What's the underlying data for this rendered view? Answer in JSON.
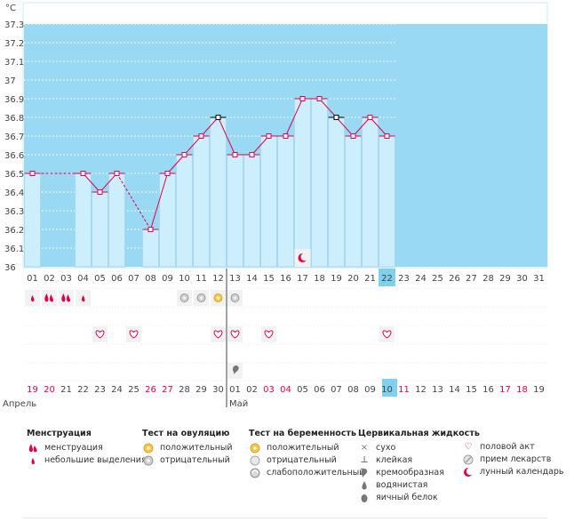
{
  "chart_data": {
    "type": "line",
    "unit": "°C",
    "ylim": [
      36.0,
      37.3
    ],
    "yticks": [
      "36",
      "36.1",
      "36.2",
      "36.3",
      "36.4",
      "36.5",
      "36.6",
      "36.7",
      "36.8",
      "36.9",
      "37",
      "37.1",
      "37.2",
      "37.3"
    ],
    "days": [
      "01",
      "02",
      "03",
      "04",
      "05",
      "06",
      "07",
      "08",
      "09",
      "10",
      "11",
      "12",
      "13",
      "14",
      "15",
      "16",
      "17",
      "18",
      "19",
      "20",
      "21",
      "22",
      "23",
      "24",
      "25",
      "26",
      "27",
      "28",
      "29",
      "30",
      "31"
    ],
    "temperatures": [
      36.5,
      null,
      null,
      36.5,
      36.4,
      36.5,
      null,
      36.2,
      36.5,
      36.6,
      36.7,
      36.8,
      36.6,
      36.6,
      36.7,
      36.7,
      36.9,
      36.9,
      36.8,
      36.7,
      36.8,
      36.7,
      null,
      null,
      null,
      null,
      null,
      null,
      null,
      null,
      null
    ],
    "hidden_bars": [
      1,
      2,
      6
    ],
    "line_breaks": [
      [
        0,
        3,
        "dashed"
      ],
      [
        5,
        7,
        "dashed"
      ]
    ],
    "black_markers": [
      11,
      18
    ],
    "highlight_day": 21,
    "moon_day": 16,
    "menstruation": [
      0,
      1,
      2,
      3
    ],
    "menstruation_heavy": [
      1,
      2
    ],
    "ovulation_negative": [
      9,
      10,
      12
    ],
    "ovulation_positive": [
      11
    ],
    "intercourse": [
      4,
      6,
      11,
      12,
      14,
      21
    ],
    "cervical_creamy": [
      12
    ],
    "dates": [
      "19",
      "20",
      "21",
      "22",
      "23",
      "24",
      "25",
      "26",
      "27",
      "28",
      "29",
      "30",
      "01",
      "02",
      "03",
      "04",
      "05",
      "06",
      "07",
      "08",
      "09",
      "10",
      "11",
      "12",
      "13",
      "14",
      "15",
      "16",
      "17",
      "18",
      "19"
    ],
    "red_dates": [
      0,
      1,
      7,
      8,
      14,
      15,
      22,
      28,
      29
    ],
    "month_left": "Апрель",
    "month_right": "Май",
    "month_split_index": 12
  },
  "legend": {
    "menstruation": {
      "title": "Менструация",
      "items": [
        "менструация",
        "небольшие выделения"
      ]
    },
    "ovulation": {
      "title": "Тест на овуляцию",
      "items": [
        "положительный",
        "отрицательный"
      ]
    },
    "pregnancy": {
      "title": "Тест на беременность",
      "items": [
        "положительный",
        "отрицательный",
        "слабоположительный"
      ]
    },
    "cervical": {
      "title": "Цервикальная жидкость",
      "items": [
        "сухо",
        "клейкая",
        "кремообразная",
        "водянистая",
        "яичный белок"
      ]
    },
    "other": {
      "items": [
        "половой акт",
        "прием лекарств",
        "лунный календарь"
      ]
    }
  },
  "colors": {
    "sky": "#9ad9f3",
    "bar": "#cdeefd",
    "bar_stroke": "#a9d9ef",
    "line": "#e0004d",
    "highlight": "#7fd0ee"
  }
}
